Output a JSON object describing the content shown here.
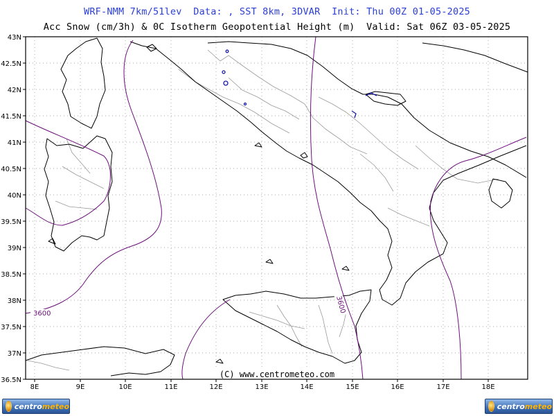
{
  "header": {
    "line1": "WRF-NMM 7km/51lev  Data: , SST 8km, 3DVAR  Init: Thu 00Z 01-05-2025",
    "line2": "Acc Snow (cm/3h) & 0C Isotherm Geopotential Height (m)  Valid: Sat 06Z 03-05-2025"
  },
  "map": {
    "lat_range": [
      36.5,
      43
    ],
    "lon_range": [
      7.75,
      18.9
    ],
    "lat_ticks": [
      "43N",
      "42.5N",
      "42N",
      "41.5N",
      "41N",
      "40.5N",
      "40N",
      "39.5N",
      "39N",
      "38.5N",
      "38N",
      "37.5N",
      "37N",
      "36.5N"
    ],
    "lon_ticks": [
      "8E",
      "9E",
      "10E",
      "11E",
      "12E",
      "13E",
      "14E",
      "15E",
      "16E",
      "17E",
      "18E"
    ],
    "grid": true,
    "contour_labels": [
      "3600",
      "3600"
    ],
    "credit": "(C) www.centrometeo.com",
    "colors": {
      "coast": "#000000",
      "border": "#9a9a9a",
      "isotherm": "#6b0f7a",
      "snow": "#1a1aa8",
      "grid": "#8c8c8c"
    }
  },
  "logos": {
    "left_text_a": "centro",
    "left_text_b": "meteo",
    "right_text_a": "centro",
    "right_text_b": "meteo"
  }
}
